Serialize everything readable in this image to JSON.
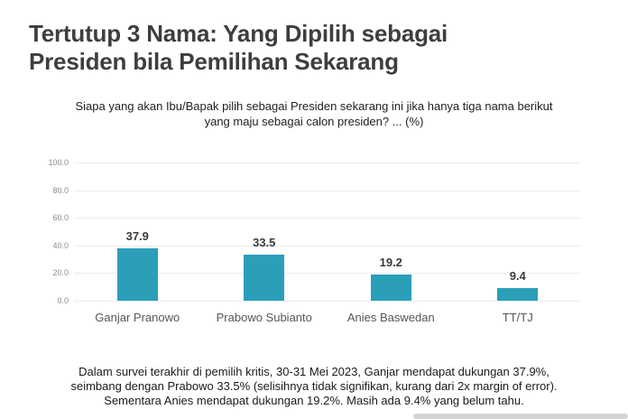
{
  "page": {
    "title_lines": [
      "Tertutup 3 Nama: Yang Dipilih sebagai",
      "Presiden bila Pemilihan Sekarang"
    ],
    "subtitle_lines": [
      "Siapa yang akan Ibu/Bapak pilih sebagai Presiden sekarang ini jika hanya tiga nama berikut",
      "yang maju sebagai calon presiden? ... (%)"
    ],
    "footer_lines": [
      "Dalam survei terakhir di pemilih kritis, 30-31 Mei 2023, Ganjar mendapat dukungan 37.9%,",
      "seimbang dengan Prabowo 33.5% (selisihnya tidak signifikan, kurang dari 2x margin of error).",
      "Sementara Anies mendapat dukungan 19.2%. Masih ada 9.4% yang belum tahu."
    ]
  },
  "chart_data": {
    "type": "bar",
    "title": "Siapa yang akan Ibu/Bapak pilih sebagai Presiden sekarang ini jika hanya tiga nama berikut yang maju sebagai calon presiden? ... (%)",
    "categories": [
      "Ganjar Pranowo",
      "Prabowo Subianto",
      "Anies Baswedan",
      "TT/TJ"
    ],
    "values": [
      37.9,
      33.5,
      19.2,
      9.4
    ],
    "value_labels": [
      "37.9",
      "33.5",
      "19.2",
      "9.4"
    ],
    "xlabel": "",
    "ylabel": "",
    "ylim": [
      0,
      100
    ],
    "yticks": [
      0,
      20,
      40,
      60,
      80,
      100
    ],
    "ytick_labels": [
      "0.0",
      "20.0",
      "40.0",
      "60.0",
      "80.0",
      "100.0"
    ],
    "grid": true,
    "legend": false,
    "bar_color": "#2b9fb8"
  },
  "colors": {
    "bar": "#2b9fb8",
    "title_text": "#3e3e3e",
    "gridline": "#ececec"
  }
}
